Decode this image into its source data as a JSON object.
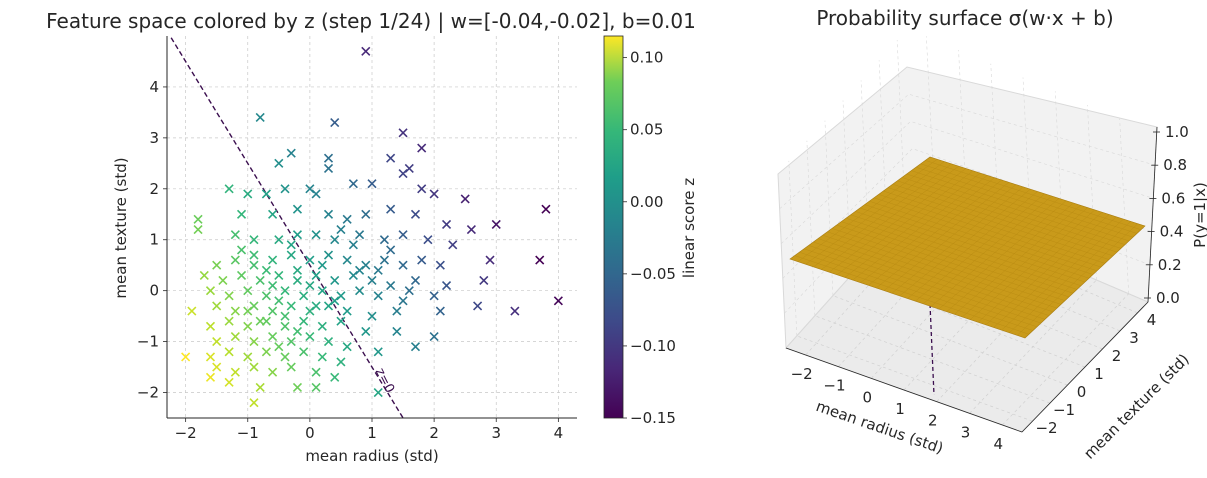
{
  "left_title": "Feature space colored by z (step 1/24) | w=[-0.04,-0.02], b=0.01",
  "right_title": "Probability surface σ(w·x + b)",
  "colors": {
    "surface": "#c99a1a",
    "line": "#3b0f4f"
  },
  "chart_data": [
    {
      "type": "scatter",
      "title": "Feature space colored by z (step 1/24) | w=[-0.04,-0.02], b=0.01",
      "xlabel": "mean radius (std)",
      "ylabel": "mean texture (std)",
      "xlim": [
        -2.3,
        4.3
      ],
      "ylim": [
        -2.5,
        5.0
      ],
      "xticks": [
        "−2",
        "−1",
        "0",
        "1",
        "2",
        "3",
        "4"
      ],
      "yticks": [
        "−2",
        "−1",
        "0",
        "1",
        "2",
        "3",
        "4"
      ],
      "grid": true,
      "marker": "x",
      "weights": [
        -0.04,
        -0.02
      ],
      "bias": 0.01,
      "boundary_label": "z=0",
      "colorbar": {
        "label": "linear score z",
        "range": [
          -0.15,
          0.115
        ],
        "ticks": [
          "0.10",
          "0.05",
          "0.00",
          "−0.05",
          "−0.10",
          "−0.15"
        ],
        "colormap": "viridis"
      },
      "points": [
        [
          0.9,
          4.7
        ],
        [
          -0.8,
          3.4
        ],
        [
          0.4,
          3.3
        ],
        [
          1.5,
          3.1
        ],
        [
          1.8,
          2.8
        ],
        [
          -0.5,
          2.5
        ],
        [
          0.3,
          2.6
        ],
        [
          0.3,
          2.4
        ],
        [
          -0.3,
          2.7
        ],
        [
          1.3,
          2.6
        ],
        [
          1.6,
          2.4
        ],
        [
          -1.3,
          2.0
        ],
        [
          -1.0,
          1.9
        ],
        [
          -0.7,
          1.9
        ],
        [
          -0.4,
          2.0
        ],
        [
          0.0,
          2.0
        ],
        [
          0.1,
          1.9
        ],
        [
          0.7,
          2.1
        ],
        [
          1.0,
          2.1
        ],
        [
          1.5,
          2.3
        ],
        [
          1.8,
          2.0
        ],
        [
          2.0,
          1.9
        ],
        [
          2.5,
          1.8
        ],
        [
          3.8,
          1.6
        ],
        [
          3.0,
          1.3
        ],
        [
          -1.8,
          1.4
        ],
        [
          -1.8,
          1.2
        ],
        [
          -1.1,
          1.5
        ],
        [
          -0.6,
          1.5
        ],
        [
          -0.2,
          1.6
        ],
        [
          0.3,
          1.5
        ],
        [
          0.6,
          1.4
        ],
        [
          0.9,
          1.5
        ],
        [
          1.3,
          1.6
        ],
        [
          1.7,
          1.5
        ],
        [
          2.2,
          1.3
        ],
        [
          2.6,
          1.2
        ],
        [
          -1.2,
          1.1
        ],
        [
          -0.9,
          1.0
        ],
        [
          -0.5,
          1.0
        ],
        [
          -0.2,
          1.1
        ],
        [
          0.1,
          1.1
        ],
        [
          0.4,
          1.0
        ],
        [
          0.8,
          1.1
        ],
        [
          1.2,
          1.0
        ],
        [
          1.5,
          1.1
        ],
        [
          1.9,
          1.0
        ],
        [
          2.3,
          0.9
        ],
        [
          -1.5,
          0.5
        ],
        [
          -1.2,
          0.6
        ],
        [
          -0.9,
          0.5
        ],
        [
          -0.6,
          0.6
        ],
        [
          -0.3,
          0.7
        ],
        [
          0.0,
          0.6
        ],
        [
          0.3,
          0.7
        ],
        [
          0.6,
          0.6
        ],
        [
          0.9,
          0.5
        ],
        [
          1.2,
          0.6
        ],
        [
          1.5,
          0.5
        ],
        [
          1.8,
          0.6
        ],
        [
          2.1,
          0.5
        ],
        [
          2.9,
          0.6
        ],
        [
          3.7,
          0.6
        ],
        [
          -1.7,
          0.3
        ],
        [
          -1.4,
          0.2
        ],
        [
          -1.1,
          0.3
        ],
        [
          -0.8,
          0.2
        ],
        [
          -0.5,
          0.3
        ],
        [
          -0.2,
          0.2
        ],
        [
          0.1,
          0.3
        ],
        [
          0.4,
          0.2
        ],
        [
          0.7,
          0.3
        ],
        [
          1.0,
          0.2
        ],
        [
          1.3,
          0.1
        ],
        [
          1.7,
          0.2
        ],
        [
          2.2,
          0.1
        ],
        [
          2.8,
          0.2
        ],
        [
          -1.6,
          0.0
        ],
        [
          -1.3,
          -0.1
        ],
        [
          -1.0,
          0.0
        ],
        [
          -0.7,
          -0.1
        ],
        [
          -0.4,
          0.0
        ],
        [
          -0.1,
          -0.1
        ],
        [
          0.2,
          0.0
        ],
        [
          0.5,
          -0.1
        ],
        [
          0.8,
          0.0
        ],
        [
          1.1,
          -0.1
        ],
        [
          1.5,
          -0.2
        ],
        [
          2.0,
          -0.1
        ],
        [
          2.7,
          -0.3
        ],
        [
          4.0,
          -0.2
        ],
        [
          -1.9,
          -0.4
        ],
        [
          -1.5,
          -0.3
        ],
        [
          -1.2,
          -0.4
        ],
        [
          -0.9,
          -0.3
        ],
        [
          -0.6,
          -0.4
        ],
        [
          -0.3,
          -0.3
        ],
        [
          0.0,
          -0.4
        ],
        [
          0.3,
          -0.3
        ],
        [
          0.6,
          -0.4
        ],
        [
          1.0,
          -0.5
        ],
        [
          1.4,
          -0.4
        ],
        [
          2.1,
          -0.4
        ],
        [
          3.3,
          -0.4
        ],
        [
          -1.6,
          -0.7
        ],
        [
          -1.3,
          -0.6
        ],
        [
          -1.0,
          -0.7
        ],
        [
          -0.7,
          -0.6
        ],
        [
          -0.4,
          -0.7
        ],
        [
          -0.1,
          -0.6
        ],
        [
          0.2,
          -0.7
        ],
        [
          0.5,
          -0.6
        ],
        [
          0.9,
          -0.8
        ],
        [
          1.4,
          -0.8
        ],
        [
          2.0,
          -0.9
        ],
        [
          -1.5,
          -1.0
        ],
        [
          -1.2,
          -0.9
        ],
        [
          -0.9,
          -1.0
        ],
        [
          -0.6,
          -0.9
        ],
        [
          -0.3,
          -1.0
        ],
        [
          0.0,
          -0.9
        ],
        [
          0.3,
          -1.0
        ],
        [
          0.6,
          -1.1
        ],
        [
          1.1,
          -1.2
        ],
        [
          1.7,
          -1.1
        ],
        [
          -1.6,
          -1.3
        ],
        [
          -1.3,
          -1.2
        ],
        [
          -1.0,
          -1.3
        ],
        [
          -0.7,
          -1.2
        ],
        [
          -0.4,
          -1.3
        ],
        [
          -0.1,
          -1.2
        ],
        [
          0.2,
          -1.3
        ],
        [
          0.5,
          -1.4
        ],
        [
          -2.0,
          -1.3
        ],
        [
          -1.5,
          -1.5
        ],
        [
          -1.2,
          -1.6
        ],
        [
          -0.9,
          -1.5
        ],
        [
          -0.6,
          -1.6
        ],
        [
          -0.3,
          -1.5
        ],
        [
          0.1,
          -1.6
        ],
        [
          0.4,
          -1.7
        ],
        [
          -1.6,
          -1.7
        ],
        [
          -1.3,
          -1.8
        ],
        [
          -0.8,
          -1.9
        ],
        [
          -0.2,
          -1.9
        ],
        [
          0.1,
          -1.9
        ],
        [
          1.1,
          -2.0
        ],
        [
          -0.9,
          -2.2
        ],
        [
          -0.5,
          -0.2
        ],
        [
          -0.2,
          0.4
        ],
        [
          0.0,
          0.1
        ],
        [
          -0.4,
          -0.5
        ],
        [
          -0.6,
          0.1
        ],
        [
          -0.8,
          -0.6
        ],
        [
          -0.3,
          0.9
        ],
        [
          0.2,
          0.5
        ],
        [
          -1.0,
          -0.4
        ],
        [
          -0.7,
          0.4
        ],
        [
          0.4,
          -0.2
        ],
        [
          0.8,
          0.4
        ],
        [
          -0.2,
          -0.8
        ],
        [
          0.7,
          0.9
        ],
        [
          1.1,
          0.4
        ],
        [
          -1.1,
          0.8
        ],
        [
          -0.5,
          -1.1
        ],
        [
          0.5,
          1.2
        ],
        [
          1.3,
          0.8
        ],
        [
          0.1,
          -0.3
        ],
        [
          -0.9,
          0.7
        ],
        [
          1.6,
          0.0
        ]
      ]
    },
    {
      "type": "surface3d",
      "title": "Probability surface σ(w·x + b)",
      "xlabel": "mean radius (std)",
      "ylabel": "mean texture (std)",
      "zlabel": "P(y=1|x)",
      "xticks": [
        "−2",
        "−1",
        "0",
        "1",
        "2",
        "3",
        "4"
      ],
      "yticks": [
        "−2",
        "−1",
        "0",
        "1",
        "2",
        "3",
        "4"
      ],
      "zticks": [
        "0.0",
        "0.2",
        "0.4",
        "0.6",
        "0.8",
        "1.0"
      ],
      "zlim": [
        0.0,
        1.0
      ],
      "surface_level": 0.5
    }
  ]
}
